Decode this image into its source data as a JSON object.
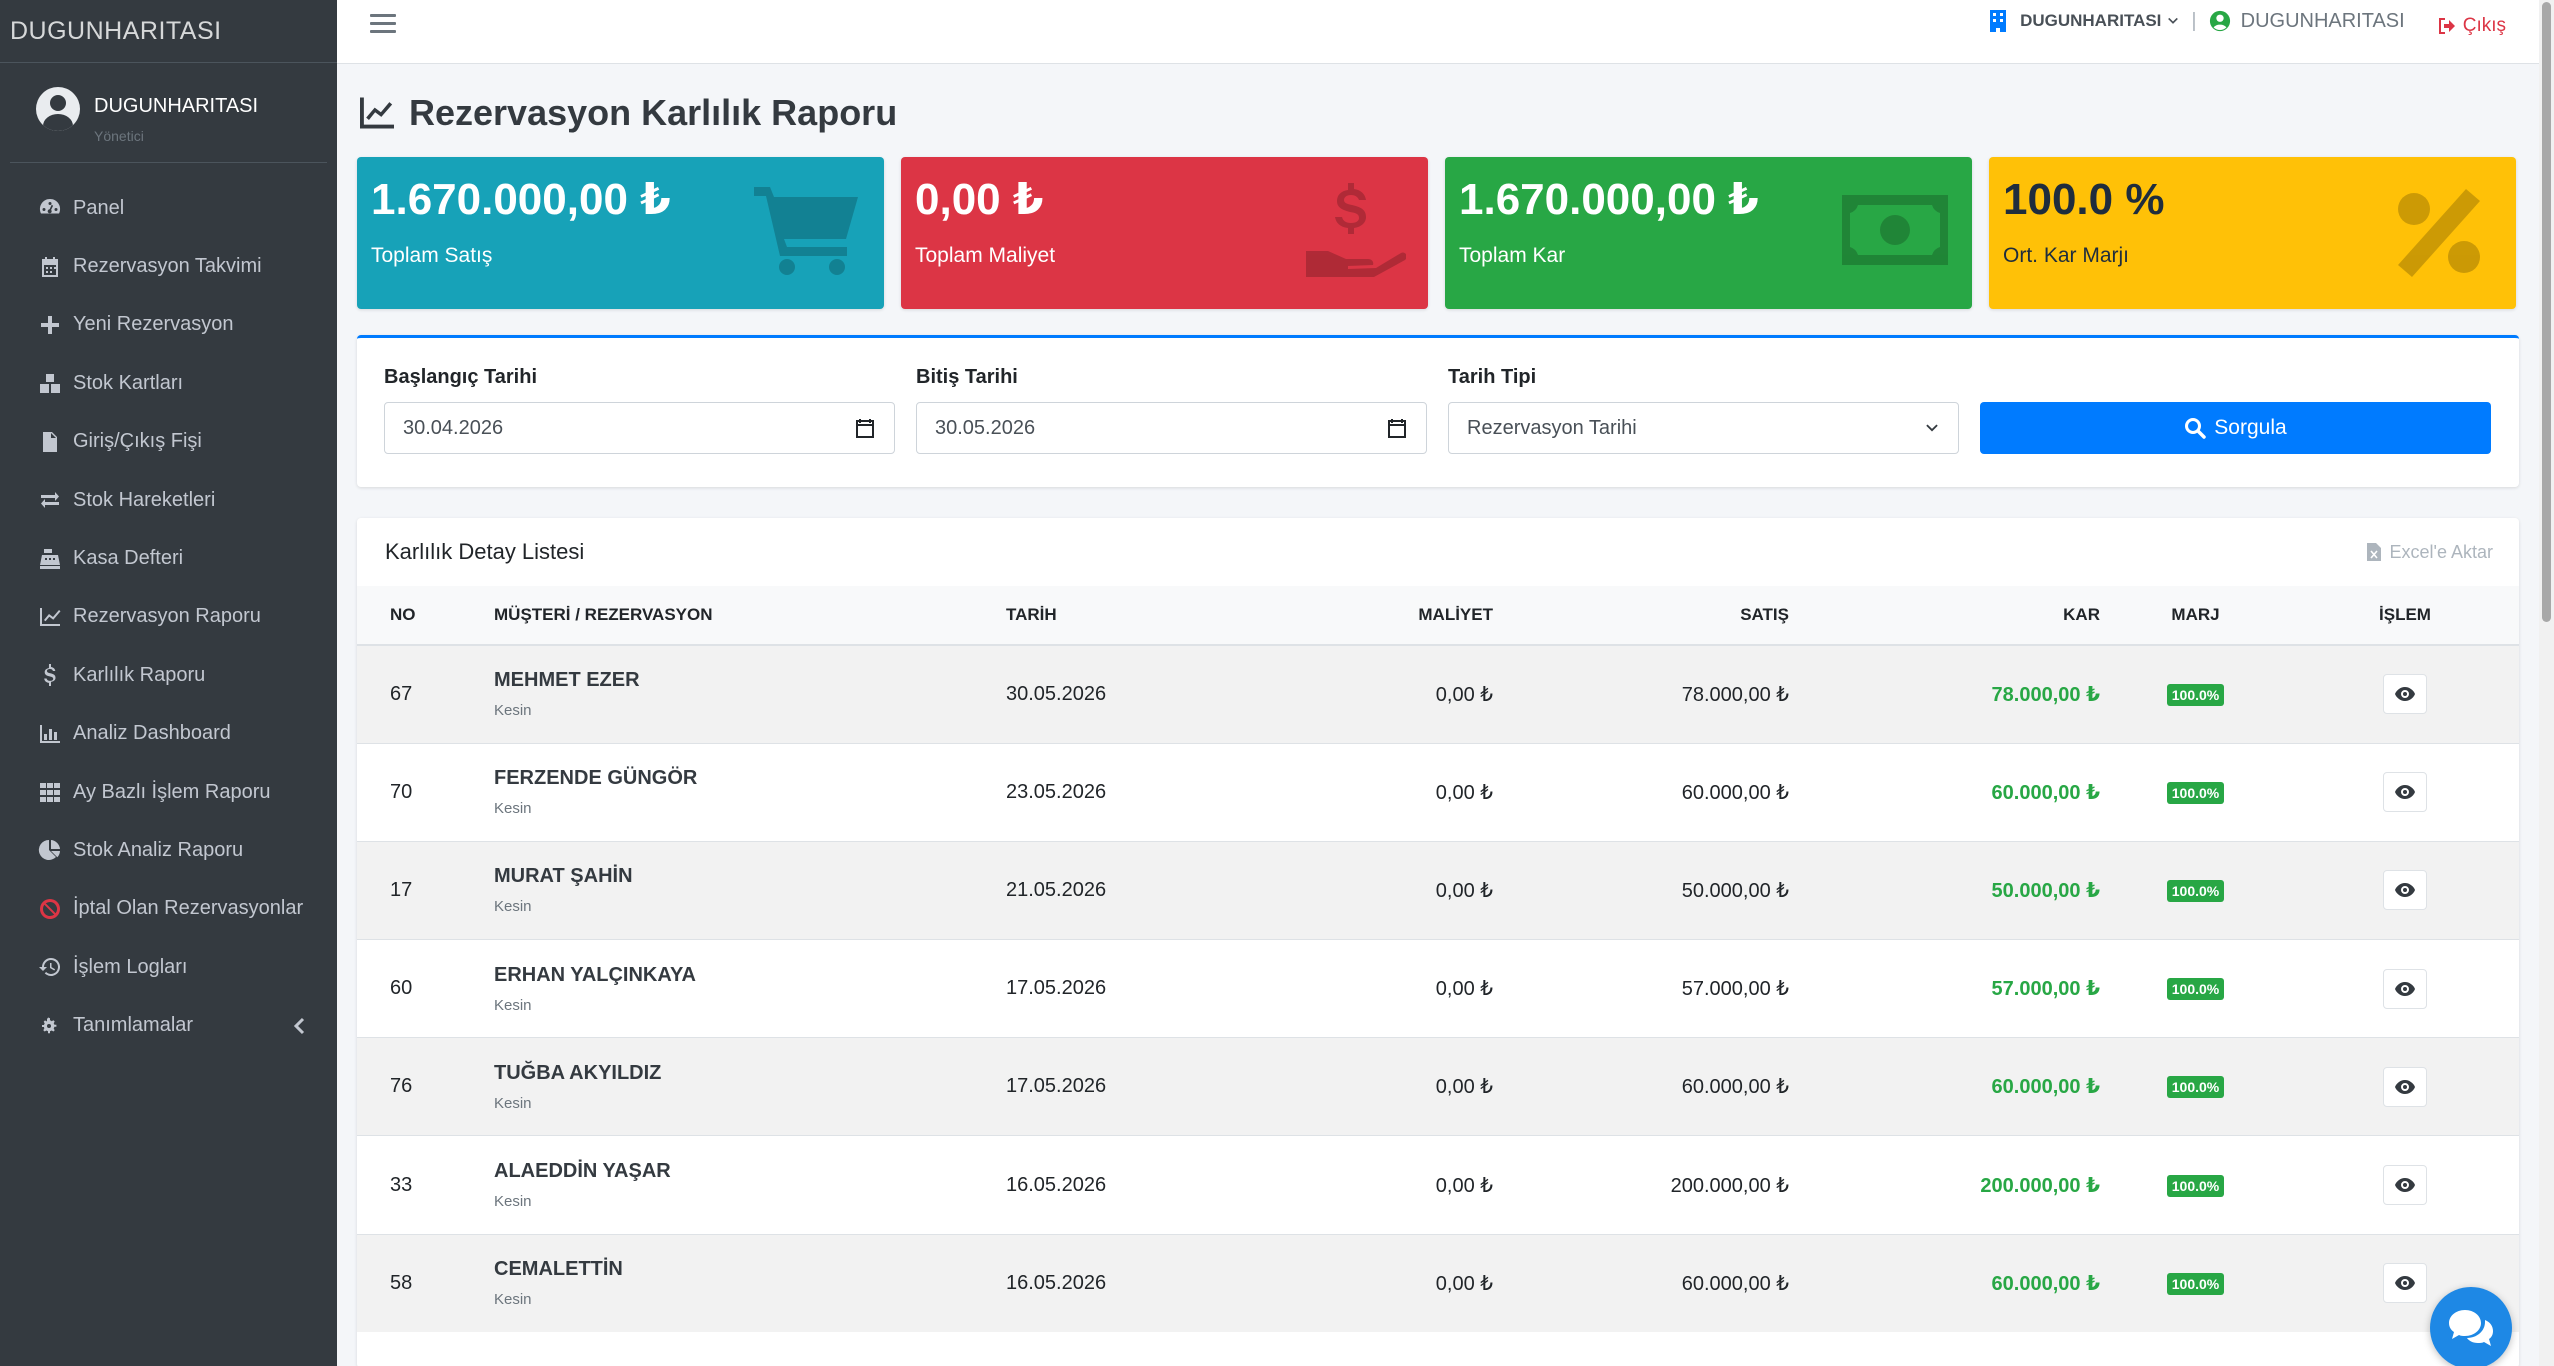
{
  "brand": "DUGUNHARITASI",
  "user": {
    "name": "DUGUNHARITASI",
    "role": "Yönetici"
  },
  "sidebar": {
    "items": [
      {
        "label": "Panel",
        "icon": "dashboard-icon"
      },
      {
        "label": "Rezervasyon Takvimi",
        "icon": "calendar-icon"
      },
      {
        "label": "Yeni Rezervasyon",
        "icon": "plus-icon"
      },
      {
        "label": "Stok Kartları",
        "icon": "boxes-icon"
      },
      {
        "label": "Giriş/Çıkış Fişi",
        "icon": "file-invoice-icon"
      },
      {
        "label": "Stok Hareketleri",
        "icon": "exchange-icon"
      },
      {
        "label": "Kasa Defteri",
        "icon": "cash-register-icon"
      },
      {
        "label": "Rezervasyon Raporu",
        "icon": "line-chart-icon"
      },
      {
        "label": "Karlılık Raporu",
        "icon": "dollar-icon"
      },
      {
        "label": "Analiz Dashboard",
        "icon": "bar-chart-icon"
      },
      {
        "label": "Ay Bazlı İşlem Raporu",
        "icon": "grid-icon"
      },
      {
        "label": "Stok Analiz Raporu",
        "icon": "pie-chart-icon"
      },
      {
        "label": "İptal Olan Rezervasyonlar",
        "icon": "ban-icon"
      },
      {
        "label": "İşlem Logları",
        "icon": "history-icon"
      },
      {
        "label": "Tanımlamalar",
        "icon": "cogs-icon"
      }
    ]
  },
  "topbar": {
    "company": "DUGUNHARITASI",
    "user": "DUGUNHARITASI",
    "logout": "Çıkış"
  },
  "page": {
    "title": "Rezervasyon Karlılık Raporu"
  },
  "stats": [
    {
      "value": "1.670.000,00 ₺",
      "label": "Toplam Satış",
      "color": "#17a2b8",
      "icon": "shopping-cart-icon"
    },
    {
      "value": "0,00 ₺",
      "label": "Toplam Maliyet",
      "color": "#dc3545",
      "icon": "hand-dollar-icon"
    },
    {
      "value": "1.670.000,00 ₺",
      "label": "Toplam Kar",
      "color": "#28a745",
      "icon": "money-bill-icon"
    },
    {
      "value": "100.0 %",
      "label": "Ort. Kar Marjı",
      "color": "#ffc107",
      "icon": "percent-icon"
    }
  ],
  "filter": {
    "start_label": "Başlangıç Tarihi",
    "start_value": "30.04.2026",
    "end_label": "Bitiş Tarihi",
    "end_value": "30.05.2026",
    "type_label": "Tarih Tipi",
    "type_value": "Rezervasyon Tarihi",
    "submit": "Sorgula"
  },
  "table": {
    "title": "Karlılık Detay Listesi",
    "export": "Excel'e Aktar",
    "headers": [
      "NO",
      "MÜŞTERİ / REZERVASYON",
      "TARİH",
      "MALİYET",
      "SATIŞ",
      "KAR",
      "MARJ",
      "İŞLEM"
    ],
    "rows": [
      {
        "no": "67",
        "name": "MEHMET EZER",
        "status": "Kesin",
        "date": "30.05.2026",
        "cost": "0,00 ₺",
        "sale": "78.000,00 ₺",
        "profit": "78.000,00 ₺",
        "margin": "100.0%"
      },
      {
        "no": "70",
        "name": "FERZENDE GÜNGÖR",
        "status": "Kesin",
        "date": "23.05.2026",
        "cost": "0,00 ₺",
        "sale": "60.000,00 ₺",
        "profit": "60.000,00 ₺",
        "margin": "100.0%"
      },
      {
        "no": "17",
        "name": "MURAT ŞAHİN",
        "status": "Kesin",
        "date": "21.05.2026",
        "cost": "0,00 ₺",
        "sale": "50.000,00 ₺",
        "profit": "50.000,00 ₺",
        "margin": "100.0%"
      },
      {
        "no": "60",
        "name": "ERHAN YALÇINKAYA",
        "status": "Kesin",
        "date": "17.05.2026",
        "cost": "0,00 ₺",
        "sale": "57.000,00 ₺",
        "profit": "57.000,00 ₺",
        "margin": "100.0%"
      },
      {
        "no": "76",
        "name": "TUĞBA AKYILDIZ",
        "status": "Kesin",
        "date": "17.05.2026",
        "cost": "0,00 ₺",
        "sale": "60.000,00 ₺",
        "profit": "60.000,00 ₺",
        "margin": "100.0%"
      },
      {
        "no": "33",
        "name": "ALAEDDİN YAŞAR",
        "status": "Kesin",
        "date": "16.05.2026",
        "cost": "0,00 ₺",
        "sale": "200.000,00 ₺",
        "profit": "200.000,00 ₺",
        "margin": "100.0%"
      },
      {
        "no": "58",
        "name": "CEMALETTİN",
        "status": "Kesin",
        "date": "16.05.2026",
        "cost": "0,00 ₺",
        "sale": "60.000,00 ₺",
        "profit": "60.000,00 ₺",
        "margin": "100.0%"
      }
    ]
  }
}
